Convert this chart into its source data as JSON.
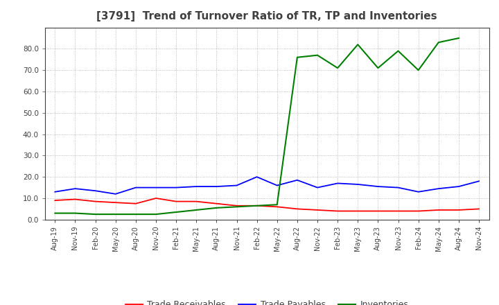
{
  "title": "[3791]  Trend of Turnover Ratio of TR, TP and Inventories",
  "x_labels": [
    "Aug-19",
    "Nov-19",
    "Feb-20",
    "May-20",
    "Aug-20",
    "Nov-20",
    "Feb-21",
    "May-21",
    "Aug-21",
    "Nov-21",
    "Feb-22",
    "May-22",
    "Aug-22",
    "Nov-22",
    "Feb-23",
    "May-23",
    "Aug-23",
    "Nov-23",
    "Feb-24",
    "May-24",
    "Aug-24",
    "Nov-24"
  ],
  "trade_receivables": [
    9.0,
    9.5,
    8.5,
    8.0,
    7.5,
    10.0,
    8.5,
    8.5,
    7.5,
    6.5,
    6.5,
    6.0,
    5.0,
    4.5,
    4.0,
    4.0,
    4.0,
    4.0,
    4.0,
    4.5,
    4.5,
    5.0
  ],
  "trade_payables": [
    13.0,
    14.5,
    13.5,
    12.0,
    15.0,
    15.0,
    15.0,
    15.5,
    15.5,
    16.0,
    20.0,
    16.0,
    18.5,
    15.0,
    17.0,
    16.5,
    15.5,
    15.0,
    13.0,
    14.5,
    15.5,
    18.0
  ],
  "inventories": [
    3.0,
    3.0,
    2.5,
    2.5,
    2.5,
    2.5,
    3.5,
    4.5,
    5.5,
    6.0,
    6.5,
    7.0,
    76.0,
    77.0,
    71.0,
    82.0,
    71.0,
    79.0,
    70.0,
    83.0,
    85.0,
    null
  ],
  "tr_color": "#ff0000",
  "tp_color": "#0000ff",
  "inv_color": "#008000",
  "ylim": [
    0.0,
    90.0
  ],
  "yticks": [
    0.0,
    10.0,
    20.0,
    30.0,
    40.0,
    50.0,
    60.0,
    70.0,
    80.0
  ],
  "legend_labels": [
    "Trade Receivables",
    "Trade Payables",
    "Inventories"
  ],
  "bg_color": "#ffffff",
  "plot_bg_color": "#ffffff",
  "title_color": "#404040",
  "tick_color": "#404040",
  "spine_color": "#404040"
}
